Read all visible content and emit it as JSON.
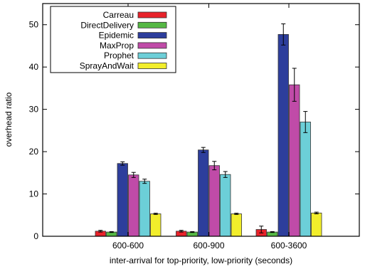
{
  "chart_data": {
    "type": "bar",
    "title": "",
    "xlabel": "inter-arrival for top-priority, low-priority (seconds)",
    "ylabel": "overhead ratio",
    "ylim": [
      0,
      55
    ],
    "yticks": [
      0,
      10,
      20,
      30,
      40,
      50
    ],
    "grid": false,
    "legend_position": "top-left",
    "categories": [
      "600-600",
      "600-900",
      "600-3600"
    ],
    "series": [
      {
        "name": "Carreau",
        "color": "#e8222a",
        "values": [
          1.2,
          1.2,
          1.6
        ],
        "errors": [
          0.2,
          0.2,
          0.8
        ]
      },
      {
        "name": "DirectDelivery",
        "color": "#55b844",
        "values": [
          1.0,
          1.0,
          1.0
        ],
        "errors": [
          0.1,
          0.1,
          0.1
        ]
      },
      {
        "name": "Epidemic",
        "color": "#2d3e9c",
        "values": [
          17.2,
          20.4,
          47.7
        ],
        "errors": [
          0.4,
          0.6,
          2.5
        ]
      },
      {
        "name": "MaxProp",
        "color": "#c04ba8",
        "values": [
          14.5,
          16.7,
          35.8
        ],
        "errors": [
          0.6,
          1.0,
          3.9
        ]
      },
      {
        "name": "Prophet",
        "color": "#6ccfd8",
        "values": [
          13.0,
          14.6,
          27.0
        ],
        "errors": [
          0.5,
          0.7,
          2.5
        ]
      },
      {
        "name": "SprayAndWait",
        "color": "#f2ee2b",
        "values": [
          5.3,
          5.3,
          5.5
        ],
        "errors": [
          0.15,
          0.15,
          0.2
        ]
      }
    ]
  }
}
